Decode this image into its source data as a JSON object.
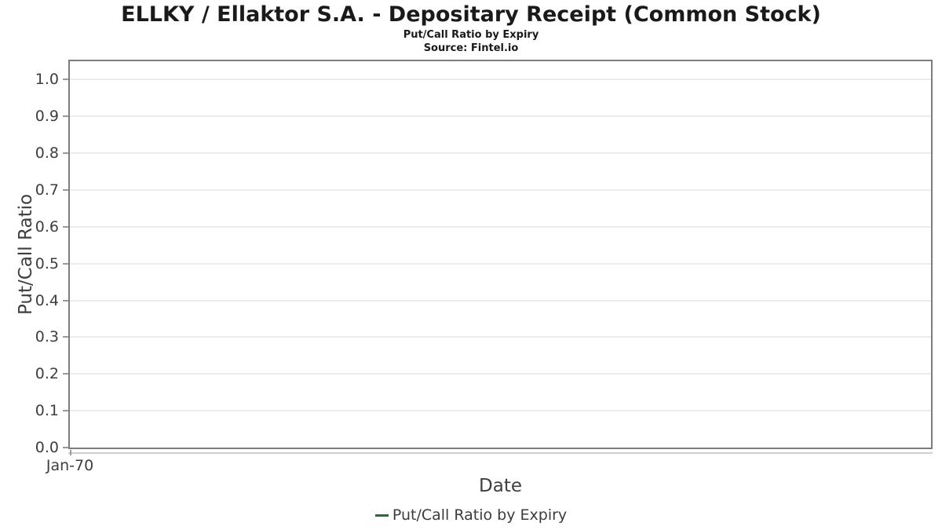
{
  "header": {
    "title": "ELLKY / Ellaktor S.A. - Depositary Receipt (Common Stock)",
    "subtitle": "Put/Call Ratio by Expiry",
    "source": "Source: Fintel.io"
  },
  "chart_data": {
    "type": "line",
    "title": "ELLKY / Ellaktor S.A. - Depositary Receipt (Common Stock)",
    "subtitle": "Put/Call Ratio by Expiry",
    "source": "Source: Fintel.io",
    "xlabel": "Date",
    "ylabel": "Put/Call Ratio",
    "x_tick_labels": [
      "Jan-70"
    ],
    "y_ticks": [
      0.0,
      0.1,
      0.2,
      0.3,
      0.4,
      0.5,
      0.6,
      0.7,
      0.8,
      0.9,
      1.0
    ],
    "ylim": [
      0,
      1.05
    ],
    "grid": "horizontal-only",
    "legend_position": "bottom-center",
    "series": [
      {
        "name": "Put/Call Ratio by Expiry",
        "color": "#2d6a32",
        "x": [],
        "values": []
      }
    ]
  },
  "colors": {
    "series_green": "#2d6a32",
    "grid_line": "#ececec",
    "plot_border": "#7d7d7d",
    "axis_line": "#cfcfcf",
    "tick_text": "#3e3e3e",
    "title_text": "#1a1a1a"
  }
}
